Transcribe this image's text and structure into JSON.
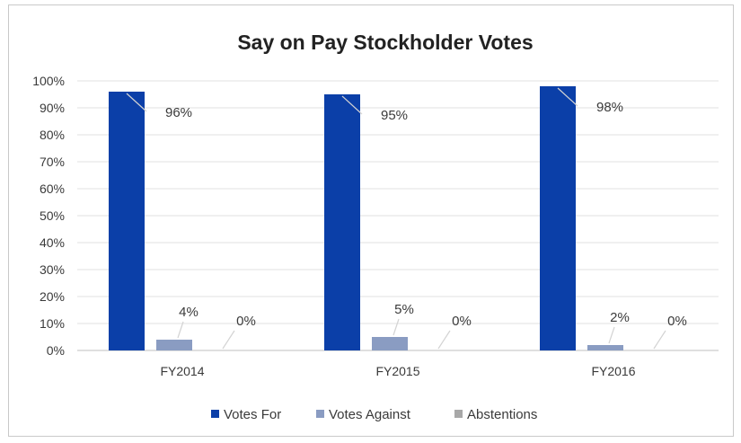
{
  "chart_data": {
    "type": "bar",
    "title": "Say on Pay Stockholder Votes",
    "xlabel": "",
    "ylabel": "",
    "categories": [
      "FY2014",
      "FY2015",
      "FY2016"
    ],
    "ylim": [
      0,
      100
    ],
    "yticks": [
      "0%",
      "10%",
      "20%",
      "30%",
      "40%",
      "50%",
      "60%",
      "70%",
      "80%",
      "90%",
      "100%"
    ],
    "grid": true,
    "legend_position": "bottom",
    "series": [
      {
        "name": "Votes For",
        "values": [
          96,
          95,
          98
        ],
        "labels": [
          "96%",
          "95%",
          "98%"
        ],
        "color": "#0b3fa8"
      },
      {
        "name": "Votes Against",
        "values": [
          4,
          5,
          2
        ],
        "labels": [
          "4%",
          "5%",
          "2%"
        ],
        "color": "#8a9cc2"
      },
      {
        "name": "Abstentions",
        "values": [
          0,
          0,
          0
        ],
        "labels": [
          "0%",
          "0%",
          "0%"
        ],
        "color": "#a8a8a8"
      }
    ]
  }
}
